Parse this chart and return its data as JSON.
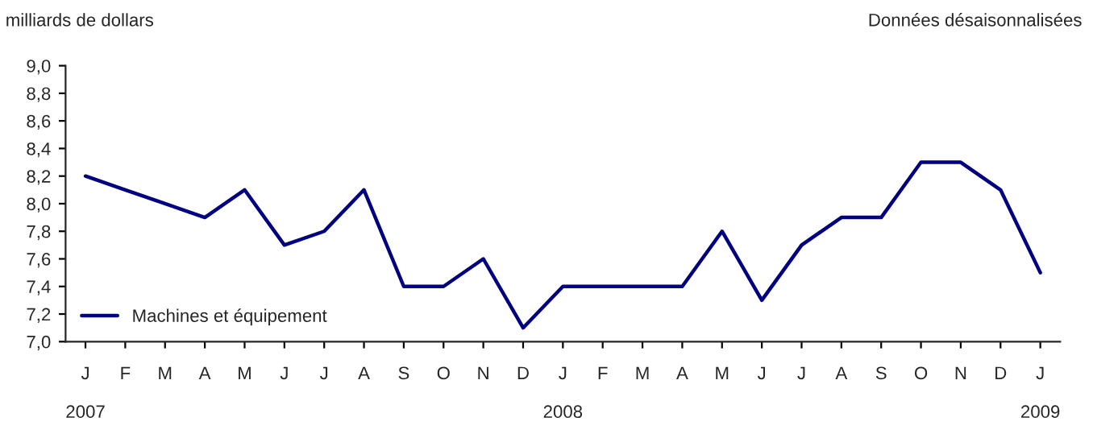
{
  "chart_data": {
    "type": "line",
    "ylabel": "milliards de dollars",
    "annotations": [
      "Données désaisonnalisées"
    ],
    "categories": [
      "J\n\n2007",
      "F",
      "M",
      "A",
      "M",
      "J",
      "J",
      "A",
      "S",
      "O",
      "N",
      "D",
      "J\n\n2008",
      "F",
      "M",
      "A",
      "M",
      "J",
      "J",
      "A",
      "S",
      "O",
      "N",
      "D",
      "J\n\n2009"
    ],
    "series": [
      {
        "name": "Machines et équipement",
        "color": "#000080",
        "values": [
          8.2,
          8.1,
          8.0,
          7.9,
          8.1,
          7.7,
          7.8,
          8.1,
          7.4,
          7.4,
          7.6,
          7.1,
          7.4,
          7.4,
          7.4,
          7.4,
          7.8,
          7.3,
          7.7,
          7.9,
          7.9,
          8.3,
          8.3,
          8.1,
          7.5
        ]
      }
    ],
    "ylim": [
      7.0,
      9.0
    ],
    "yticks": [
      {
        "value": 7.0,
        "label": "7,0"
      },
      {
        "value": 7.2,
        "label": "7,2"
      },
      {
        "value": 7.4,
        "label": "7,4"
      },
      {
        "value": 7.6,
        "label": "7,6"
      },
      {
        "value": 7.8,
        "label": "7,8"
      },
      {
        "value": 8.0,
        "label": "8,0"
      },
      {
        "value": 8.2,
        "label": "8,2"
      },
      {
        "value": 8.4,
        "label": "8,4"
      },
      {
        "value": 8.6,
        "label": "8,6"
      },
      {
        "value": 8.8,
        "label": "8,8"
      },
      {
        "value": 9.0,
        "label": "9,0"
      }
    ],
    "grid": false,
    "legend": "bottom left",
    "marker": "none",
    "line_style": "solid"
  }
}
